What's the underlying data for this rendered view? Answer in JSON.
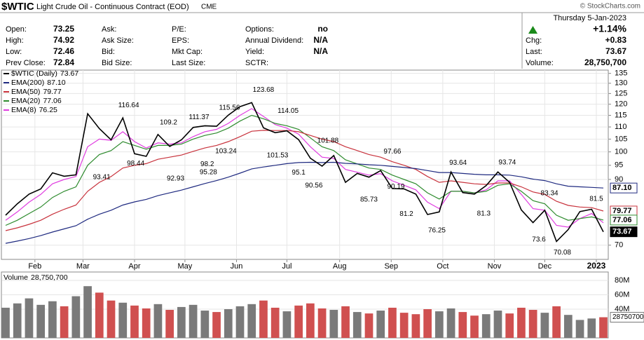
{
  "header": {
    "symbol": "$WTIC",
    "name": "Light Crude Oil - Continuous Contract (EOD)",
    "exchange": "CME",
    "copyright": "© StockCharts.com",
    "date": "Thursday  5-Jan-2023",
    "change_pct": "+1.14%",
    "columns": [
      [
        {
          "label": "Open:",
          "value": "73.25"
        },
        {
          "label": "High:",
          "value": "74.92"
        },
        {
          "label": "Low:",
          "value": "72.46"
        },
        {
          "label": "Prev Close:",
          "value": "72.84"
        }
      ],
      [
        {
          "label": "Ask:"
        },
        {
          "label": "Ask Size:"
        },
        {
          "label": "Bid:"
        },
        {
          "label": "Bid Size:"
        }
      ],
      [
        {
          "label": "P/E:"
        },
        {
          "label": "EPS:"
        },
        {
          "label": "Mkt Cap:"
        },
        {
          "label": "Last Size:"
        }
      ],
      [
        {
          "label": "Options:",
          "value": "no"
        },
        {
          "label": "Annual Dividend:",
          "value": "N/A"
        },
        {
          "label": "Yield:",
          "value": "N/A"
        },
        {
          "label": "SCTR:"
        }
      ]
    ],
    "quote": [
      {
        "label": "Chg:",
        "value": "+0.83"
      },
      {
        "label": "Last:",
        "value": "73.67"
      },
      {
        "label": "Volume:",
        "value": "28,750,700"
      }
    ]
  },
  "chart_data": [
    {
      "type": "line",
      "log": true,
      "grid": true,
      "xlim": [
        0,
        51
      ],
      "ylim": [
        66.3,
        136.7
      ],
      "xticks": [
        {
          "value": 2.5,
          "label": "Feb"
        },
        {
          "value": 6.6,
          "label": "Mar"
        },
        {
          "value": 11,
          "label": "Apr"
        },
        {
          "value": 15.3,
          "label": "May"
        },
        {
          "value": 19.7,
          "label": "Jun"
        },
        {
          "value": 24,
          "label": "Jul"
        },
        {
          "value": 28.5,
          "label": "Aug"
        },
        {
          "value": 32.9,
          "label": "Sep"
        },
        {
          "value": 37.3,
          "label": "Oct"
        },
        {
          "value": 41.7,
          "label": "Nov"
        },
        {
          "value": 46,
          "label": "Dec"
        },
        {
          "value": 50.4,
          "label": "2023"
        }
      ],
      "yticks": [
        70,
        90,
        95,
        100,
        105,
        110,
        115,
        120,
        125,
        130,
        135
      ],
      "series": [
        {
          "name": "$WTIC (Daily)",
          "color": "#000000",
          "last_label": "73.67",
          "values": [
            78.5,
            82.0,
            85.1,
            86.8,
            92.3,
            91.1,
            91.6,
            115.7,
            109.3,
            104.7,
            113.9,
            99.3,
            98.3,
            106.9,
            102.1,
            104.7,
            109.8,
            110.5,
            110.3,
            115.1,
            118.9,
            120.7,
            109.6,
            107.6,
            108.4,
            104.8,
            97.6,
            94.7,
            98.6,
            89.0,
            92.1,
            90.8,
            93.1,
            86.9,
            86.8,
            85.1,
            78.7,
            79.5,
            92.6,
            85.6,
            85.1,
            87.9,
            92.6,
            89.0,
            80.1,
            76.3,
            80.0,
            71.0,
            74.3,
            79.6,
            80.3,
            73.67
          ]
        },
        {
          "name": "EMA(200)",
          "color": "#1f2a80",
          "last_label": "87.10",
          "values": [
            70.5,
            71.1,
            71.8,
            72.6,
            73.6,
            74.5,
            75.4,
            77.3,
            78.8,
            80.0,
            81.6,
            82.6,
            83.4,
            84.6,
            85.5,
            86.4,
            87.5,
            88.6,
            89.6,
            90.8,
            92.2,
            93.7,
            94.4,
            95.0,
            95.6,
            96.0,
            96.1,
            96.0,
            96.1,
            95.7,
            95.5,
            95.2,
            95.0,
            94.6,
            94.2,
            93.8,
            93.1,
            92.4,
            92.4,
            92.1,
            91.8,
            91.6,
            91.6,
            91.5,
            90.9,
            90.1,
            89.6,
            88.5,
            87.7,
            87.5,
            87.3,
            87.1
          ]
        },
        {
          "name": "EMA(50)",
          "color": "#c8323c",
          "last_label": "79.77",
          "values": [
            74.0,
            74.8,
            75.8,
            77.0,
            78.8,
            80.3,
            81.6,
            86.0,
            89.0,
            91.0,
            94.0,
            95.0,
            95.6,
            97.2,
            98.0,
            98.8,
            100.2,
            101.5,
            102.5,
            104.0,
            106.0,
            108.2,
            108.6,
            108.5,
            108.5,
            108.0,
            106.5,
            105.0,
            104.0,
            102.0,
            100.5,
            99.0,
            98.0,
            96.3,
            95.0,
            93.5,
            91.0,
            89.0,
            89.5,
            89.0,
            88.5,
            88.3,
            88.8,
            88.8,
            87.5,
            85.8,
            85.0,
            82.8,
            81.5,
            81.0,
            80.8,
            79.77
          ]
        },
        {
          "name": "EMA(20)",
          "color": "#2e8b2e",
          "last_label": "77.06",
          "values": [
            75.5,
            77.0,
            79.0,
            81.0,
            84.0,
            86.0,
            87.5,
            95.0,
            99.0,
            100.5,
            104.0,
            102.5,
            101.0,
            102.5,
            102.5,
            103.0,
            105.0,
            106.5,
            107.5,
            109.5,
            112.5,
            115.0,
            113.5,
            111.5,
            110.5,
            109.0,
            105.5,
            102.0,
            100.5,
            97.0,
            95.5,
            94.0,
            93.5,
            91.5,
            90.0,
            88.5,
            85.5,
            83.5,
            86.0,
            86.0,
            85.5,
            86.0,
            88.0,
            88.5,
            86.0,
            83.0,
            82.0,
            78.5,
            77.0,
            77.5,
            78.0,
            77.06
          ]
        },
        {
          "name": "EMA(8)",
          "color": "#e03ce0",
          "last_label": "76.25",
          "values": [
            77.0,
            79.5,
            82.5,
            85.0,
            88.5,
            90.0,
            91.0,
            102.0,
            105.0,
            104.5,
            108.0,
            104.0,
            101.5,
            103.5,
            103.0,
            103.5,
            106.0,
            108.0,
            109.0,
            111.5,
            115.0,
            118.0,
            114.5,
            111.0,
            109.5,
            107.0,
            102.0,
            98.0,
            97.5,
            93.5,
            92.5,
            91.5,
            92.0,
            89.5,
            88.0,
            86.5,
            82.5,
            80.5,
            86.0,
            86.0,
            85.5,
            86.5,
            89.5,
            89.5,
            85.0,
            80.5,
            80.0,
            75.5,
            75.0,
            77.5,
            79.0,
            76.25
          ]
        }
      ],
      "high_labels": [
        {
          "x": 10.5,
          "y": 116.64
        },
        {
          "x": 13.9,
          "y": 109.2
        },
        {
          "x": 16.5,
          "y": 111.37
        },
        {
          "x": 19.1,
          "y": 115.56
        },
        {
          "x": 22.0,
          "y": 123.68
        },
        {
          "x": 24.1,
          "y": 114.05
        },
        {
          "x": 27.5,
          "y": 101.88
        },
        {
          "x": 33.0,
          "y": 97.66
        },
        {
          "x": 38.6,
          "y": 93.64
        },
        {
          "x": 42.8,
          "y": 93.74
        },
        {
          "x": 46.4,
          "y": 83.34
        },
        {
          "x": 50.4,
          "y": 81.5
        }
      ],
      "low_labels": [
        {
          "x": 8.2,
          "y": 93.41
        },
        {
          "x": 11.1,
          "y": 98.44
        },
        {
          "x": 14.5,
          "y": 92.93
        },
        {
          "x": 17.3,
          "y": 95.28
        },
        {
          "x": 17.2,
          "y": 98.2
        },
        {
          "x": 18.8,
          "y": 103.24
        },
        {
          "x": 23.2,
          "y": 101.53
        },
        {
          "x": 25.0,
          "y": 95.1
        },
        {
          "x": 26.3,
          "y": 90.56
        },
        {
          "x": 31.0,
          "y": 85.73
        },
        {
          "x": 33.3,
          "y": 90.19
        },
        {
          "x": 34.2,
          "y": 81.2
        },
        {
          "x": 36.8,
          "y": 76.25
        },
        {
          "x": 40.8,
          "y": 81.3
        },
        {
          "x": 45.5,
          "y": 73.6
        },
        {
          "x": 47.5,
          "y": 70.08
        }
      ]
    },
    {
      "type": "bar",
      "title": "Volume",
      "colors": {
        "up": "#7a7a7a",
        "down": "#d05050"
      },
      "ylim": [
        0,
        91700000
      ],
      "yticks": [
        {
          "value": 40000000,
          "label": "40M"
        },
        {
          "value": 60000000,
          "label": "60M"
        },
        {
          "value": 80000000,
          "label": "80M"
        }
      ],
      "values": [
        42000000,
        48000000,
        55000000,
        46000000,
        51000000,
        44000000,
        58000000,
        72000000,
        63000000,
        52000000,
        49000000,
        45000000,
        41000000,
        47000000,
        39000000,
        43000000,
        46000000,
        38000000,
        36000000,
        40000000,
        44000000,
        47000000,
        52000000,
        42000000,
        37000000,
        45000000,
        48000000,
        41000000,
        39000000,
        44000000,
        36000000,
        34000000,
        38000000,
        42000000,
        35000000,
        33000000,
        40000000,
        37000000,
        41000000,
        36000000,
        31000000,
        33000000,
        38000000,
        34000000,
        42000000,
        39000000,
        35000000,
        44000000,
        32000000,
        25000000,
        27000000,
        28750700
      ]
    }
  ]
}
